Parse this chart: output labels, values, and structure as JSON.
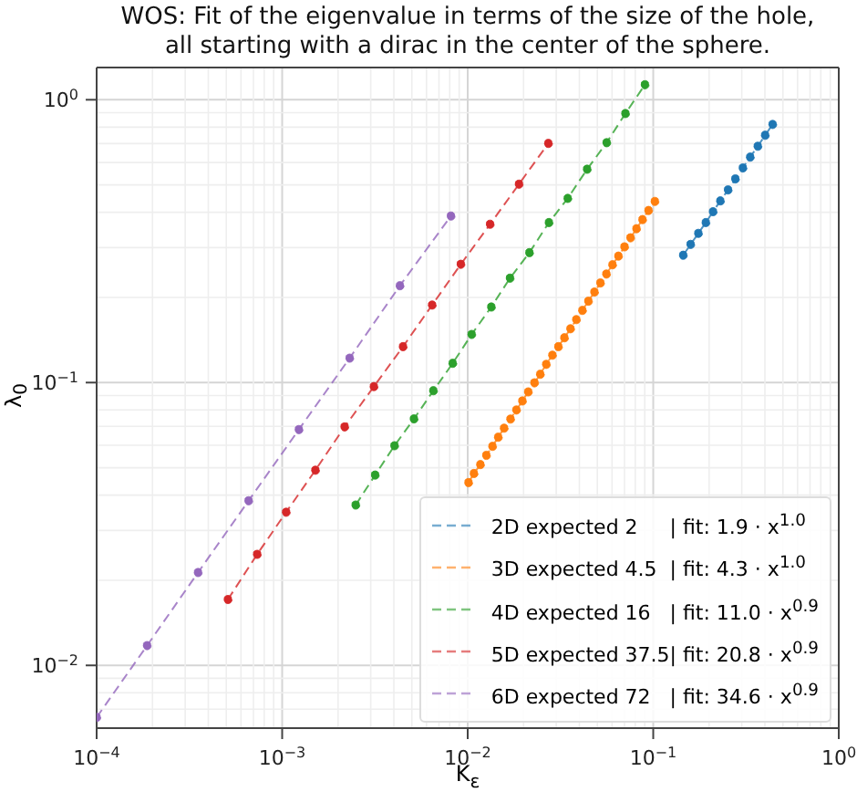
{
  "chart_data": {
    "type": "line",
    "title": "WOS: Fit of the eigenvalue in terms of the size of the hole,\nall starting with a dirac in the center of the sphere.",
    "xlabel": "K$_{ε}$",
    "ylabel": "λ$_{0}$",
    "log": "xy",
    "grid": true,
    "legend": "bottom right",
    "marker": "circle",
    "line_style": "dashed",
    "xlim": [
      0.0001,
      1
    ],
    "ylim": [
      0.006,
      1.3
    ],
    "xticks": [
      {
        "value": 0.0001,
        "label": "10$^{−4}$"
      },
      {
        "value": 0.001,
        "label": "10$^{−3}$"
      },
      {
        "value": 0.01,
        "label": "10$^{−2}$"
      },
      {
        "value": 0.1,
        "label": "10$^{−1}$"
      },
      {
        "value": 1,
        "label": "10$^{0}$"
      }
    ],
    "yticks": [
      {
        "value": 0.01,
        "label": "10$^{−2}$"
      },
      {
        "value": 0.1,
        "label": "10$^{−1}$"
      },
      {
        "value": 1,
        "label": "10$^{0}$"
      }
    ],
    "series": [
      {
        "name": "2D expected 2     | fit: 1.9 · x$^{1.0}$",
        "color": "#1f77b4",
        "x": [
          0.145,
          0.159,
          0.175,
          0.192,
          0.21,
          0.23,
          0.253,
          0.277,
          0.304,
          0.333,
          0.366,
          0.401,
          0.44
        ],
        "values": [
          0.282,
          0.308,
          0.337,
          0.368,
          0.402,
          0.439,
          0.48,
          0.525,
          0.574,
          0.627,
          0.685,
          0.749,
          0.818
        ]
      },
      {
        "name": "3D expected 4.5  | fit: 4.3 · x$^{1.0}$",
        "color": "#ff7f0e",
        "x": [
          0.0101,
          0.0108,
          0.0117,
          0.0126,
          0.0136,
          0.0146,
          0.0157,
          0.017,
          0.0183,
          0.0197,
          0.0212,
          0.0229,
          0.0246,
          0.0265,
          0.0286,
          0.0308,
          0.0332,
          0.0358,
          0.0385,
          0.0415,
          0.0447,
          0.0482,
          0.0519,
          0.0559,
          0.0603,
          0.0649,
          0.07,
          0.0754,
          0.0812,
          0.0875,
          0.0943,
          0.102
        ],
        "values": [
          0.0443,
          0.0477,
          0.0513,
          0.0553,
          0.0595,
          0.0641,
          0.069,
          0.0743,
          0.08,
          0.0861,
          0.0927,
          0.0998,
          0.107,
          0.116,
          0.125,
          0.134,
          0.144,
          0.155,
          0.167,
          0.18,
          0.194,
          0.209,
          0.225,
          0.242,
          0.261,
          0.28,
          0.302,
          0.325,
          0.35,
          0.377,
          0.406,
          0.437
        ]
      },
      {
        "name": "4D expected 16   | fit: 11.0 · x$^{0.9}$",
        "color": "#2ca02c",
        "x": [
          0.00249,
          0.00317,
          0.00403,
          0.00513,
          0.00653,
          0.0083,
          0.0105,
          0.0134,
          0.0169,
          0.0215,
          0.0274,
          0.0346,
          0.044,
          0.0561,
          0.0708,
          0.0902
        ],
        "values": [
          0.0369,
          0.0471,
          0.0598,
          0.0744,
          0.0936,
          0.117,
          0.148,
          0.185,
          0.234,
          0.288,
          0.368,
          0.448,
          0.568,
          0.705,
          0.894,
          1.13
        ]
      },
      {
        "name": "5D expected 37.5| fit: 20.8 · x$^{0.9}$",
        "color": "#d62728",
        "x": [
          0.00051,
          0.000733,
          0.00105,
          0.00151,
          0.00217,
          0.00312,
          0.00448,
          0.00643,
          0.00918,
          0.0132,
          0.0189,
          0.0272
        ],
        "values": [
          0.0171,
          0.0247,
          0.0348,
          0.049,
          0.0697,
          0.0968,
          0.134,
          0.188,
          0.262,
          0.363,
          0.503,
          0.701
        ]
      },
      {
        "name": "6D expected 72   | fit: 34.6 · x$^{0.9}$",
        "color": "#9467bd",
        "x": [
          0.0001,
          0.000187,
          0.000352,
          0.000659,
          0.00123,
          0.00231,
          0.00431,
          0.00812
        ],
        "values": [
          0.00655,
          0.01175,
          0.0213,
          0.0382,
          0.0682,
          0.122,
          0.22,
          0.388
        ]
      }
    ]
  }
}
